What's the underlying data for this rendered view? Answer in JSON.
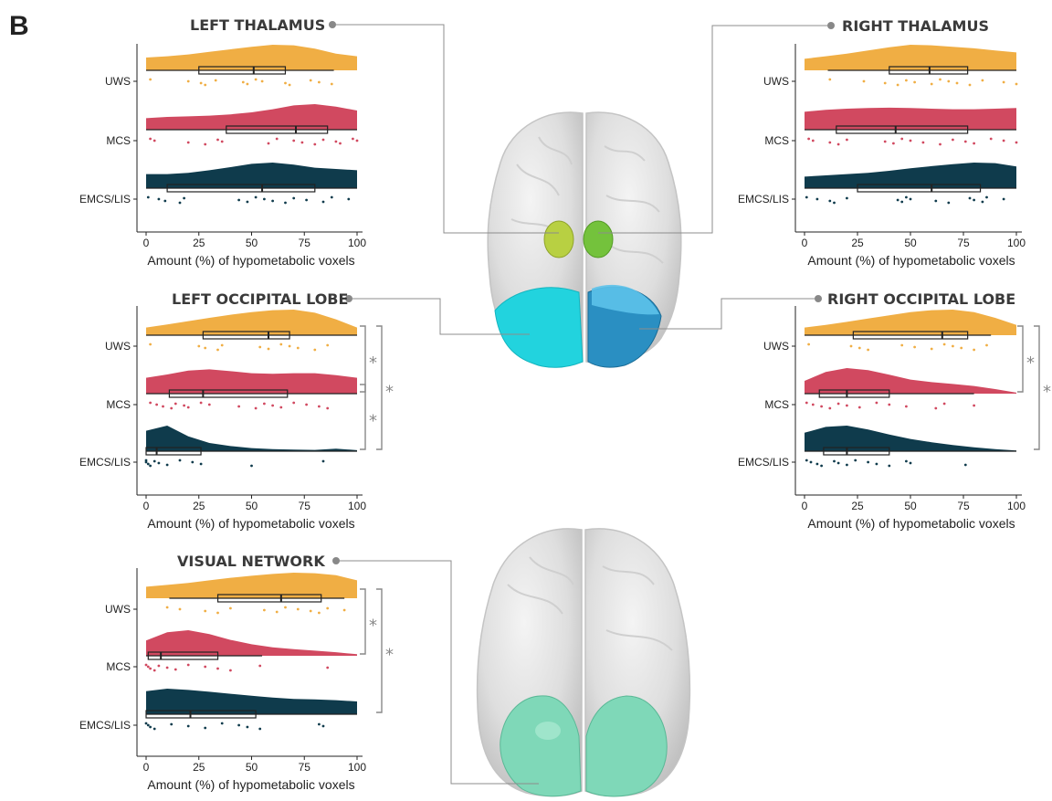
{
  "panel_label": "B",
  "colors": {
    "UWS": "#F0AE44",
    "MCS": "#D14960",
    "EMCS/LIS": "#0F3B4C"
  },
  "chart_data": [
    {
      "type": "raincloud",
      "title": "LEFT THALAMUS",
      "xlabel": "Amount (%) of hypometabolic voxels",
      "xlim": [
        0,
        100
      ],
      "xticks": [
        "0",
        "25",
        "50",
        "75",
        "100"
      ],
      "categories": [
        "UWS",
        "MCS",
        "EMCS/LIS"
      ],
      "series": [
        {
          "name": "UWS",
          "box": {
            "min": 0,
            "q1": 25,
            "median": 51,
            "q3": 66,
            "max": 89
          },
          "density": [
            0.5,
            0.55,
            0.62,
            0.72,
            0.82,
            0.92,
            1.0,
            0.98,
            0.85,
            0.65,
            0.55
          ],
          "points": [
            2,
            20,
            26,
            28,
            33,
            46,
            48,
            52,
            55,
            66,
            68,
            78,
            82,
            88
          ]
        },
        {
          "name": "MCS",
          "box": {
            "min": 0,
            "q1": 38,
            "median": 71,
            "q3": 86,
            "max": 100
          },
          "density": [
            0.45,
            0.5,
            0.52,
            0.55,
            0.6,
            0.68,
            0.8,
            0.95,
            1.0,
            0.9,
            0.75
          ],
          "points": [
            2,
            4,
            20,
            28,
            34,
            36,
            58,
            62,
            70,
            74,
            80,
            84,
            90,
            92,
            98,
            100
          ]
        },
        {
          "name": "EMCS/LIS",
          "box": {
            "min": 0,
            "q1": 10,
            "median": 55,
            "q3": 80,
            "max": 100
          },
          "density": [
            0.55,
            0.55,
            0.6,
            0.7,
            0.82,
            0.95,
            1.0,
            0.92,
            0.8,
            0.75,
            0.7
          ],
          "points": [
            1,
            6,
            9,
            16,
            18,
            44,
            48,
            52,
            56,
            60,
            66,
            70,
            76,
            84,
            88,
            96
          ]
        }
      ],
      "significance": []
    },
    {
      "type": "raincloud",
      "title": "RIGHT THALAMUS",
      "xlabel": "Amount (%) of hypometabolic voxels",
      "xlim": [
        0,
        100
      ],
      "xticks": [
        "0",
        "25",
        "50",
        "75",
        "100"
      ],
      "categories": [
        "UWS",
        "MCS",
        "EMCS/LIS"
      ],
      "series": [
        {
          "name": "UWS",
          "box": {
            "min": 11,
            "q1": 40,
            "median": 59,
            "q3": 77,
            "max": 100
          },
          "density": [
            0.45,
            0.55,
            0.65,
            0.78,
            0.9,
            1.0,
            0.98,
            0.92,
            0.86,
            0.78,
            0.7
          ],
          "points": [
            12,
            28,
            38,
            44,
            48,
            52,
            60,
            64,
            68,
            72,
            78,
            84,
            94,
            100
          ]
        },
        {
          "name": "MCS",
          "box": {
            "min": 0,
            "q1": 15,
            "median": 43,
            "q3": 77,
            "max": 100
          },
          "density": [
            0.7,
            0.78,
            0.82,
            0.85,
            0.86,
            0.85,
            0.82,
            0.8,
            0.8,
            0.82,
            0.85
          ],
          "points": [
            2,
            4,
            12,
            16,
            20,
            38,
            42,
            46,
            50,
            56,
            64,
            70,
            76,
            80,
            88,
            94,
            100
          ]
        },
        {
          "name": "EMCS/LIS",
          "box": {
            "min": 0,
            "q1": 25,
            "median": 60,
            "q3": 83,
            "max": 100
          },
          "density": [
            0.45,
            0.5,
            0.55,
            0.6,
            0.68,
            0.78,
            0.86,
            0.94,
            1.0,
            0.98,
            0.85
          ],
          "points": [
            1,
            6,
            12,
            14,
            20,
            44,
            46,
            48,
            50,
            62,
            68,
            78,
            80,
            84,
            86,
            94
          ]
        }
      ],
      "significance": []
    },
    {
      "type": "raincloud",
      "title": "LEFT OCCIPITAL LOBE",
      "xlabel": "Amount (%) of hypometabolic voxels",
      "xlim": [
        0,
        100
      ],
      "xticks": [
        "0",
        "25",
        "50",
        "75",
        "100"
      ],
      "categories": [
        "UWS",
        "MCS",
        "EMCS/LIS"
      ],
      "series": [
        {
          "name": "UWS",
          "box": {
            "min": 0,
            "q1": 27,
            "median": 58,
            "q3": 68,
            "max": 100
          },
          "density": [
            0.3,
            0.42,
            0.55,
            0.68,
            0.8,
            0.9,
            0.98,
            1.0,
            0.88,
            0.62,
            0.3
          ],
          "points": [
            2,
            25,
            28,
            34,
            36,
            54,
            58,
            64,
            68,
            72,
            80,
            86
          ]
        },
        {
          "name": "MCS",
          "box": {
            "min": 0,
            "q1": 11,
            "median": 27,
            "q3": 67,
            "max": 100
          },
          "density": [
            0.62,
            0.75,
            0.9,
            0.95,
            0.88,
            0.8,
            0.78,
            0.8,
            0.8,
            0.72,
            0.62
          ],
          "points": [
            2,
            5,
            8,
            12,
            14,
            18,
            20,
            26,
            30,
            44,
            52,
            56,
            60,
            64,
            70,
            76,
            82,
            86
          ]
        },
        {
          "name": "EMCS/LIS",
          "box": {
            "min": 0,
            "q1": 0,
            "median": 5,
            "q3": 26,
            "max": 100
          },
          "density": [
            0.8,
            1.0,
            0.58,
            0.32,
            0.2,
            0.12,
            0.08,
            0.06,
            0.05,
            0.1,
            0.04
          ],
          "points": [
            0,
            0,
            1,
            2,
            4,
            6,
            10,
            16,
            22,
            26,
            50,
            84
          ]
        }
      ],
      "significance": [
        {
          "pair": [
            "UWS",
            "MCS"
          ],
          "label": "*"
        },
        {
          "pair": [
            "UWS",
            "EMCS/LIS"
          ],
          "label": "*"
        },
        {
          "pair": [
            "MCS",
            "EMCS/LIS"
          ],
          "label": "*"
        }
      ]
    },
    {
      "type": "raincloud",
      "title": "RIGHT OCCIPITAL LOBE",
      "xlabel": "Amount (%) of hypometabolic voxels",
      "xlim": [
        0,
        100
      ],
      "xticks": [
        "0",
        "25",
        "50",
        "75",
        "100"
      ],
      "categories": [
        "UWS",
        "MCS",
        "EMCS/LIS"
      ],
      "series": [
        {
          "name": "UWS",
          "box": {
            "min": 0,
            "q1": 23,
            "median": 65,
            "q3": 77,
            "max": 88
          },
          "density": [
            0.3,
            0.4,
            0.52,
            0.65,
            0.78,
            0.9,
            0.98,
            1.0,
            0.9,
            0.68,
            0.4
          ],
          "points": [
            2,
            22,
            26,
            30,
            46,
            52,
            60,
            66,
            70,
            74,
            80,
            86
          ]
        },
        {
          "name": "MCS",
          "box": {
            "min": 0,
            "q1": 7,
            "median": 20,
            "q3": 40,
            "max": 80
          },
          "density": [
            0.5,
            0.85,
            1.0,
            0.92,
            0.74,
            0.55,
            0.45,
            0.38,
            0.3,
            0.18,
            0.04
          ],
          "points": [
            1,
            4,
            8,
            12,
            16,
            20,
            26,
            34,
            40,
            48,
            62,
            66,
            80
          ]
        },
        {
          "name": "EMCS/LIS",
          "box": {
            "min": 0,
            "q1": 9,
            "median": 20,
            "q3": 40,
            "max": 100
          },
          "density": [
            0.72,
            0.95,
            1.0,
            0.85,
            0.65,
            0.48,
            0.35,
            0.24,
            0.15,
            0.08,
            0.03
          ],
          "points": [
            1,
            3,
            6,
            8,
            14,
            16,
            20,
            24,
            30,
            34,
            40,
            48,
            50,
            76
          ]
        }
      ],
      "significance": [
        {
          "pair": [
            "UWS",
            "MCS"
          ],
          "label": "*"
        },
        {
          "pair": [
            "UWS",
            "EMCS/LIS"
          ],
          "label": "*"
        }
      ]
    },
    {
      "type": "raincloud",
      "title": "VISUAL NETWORK",
      "xlabel": "Amount (%) of hypometabolic voxels",
      "xlim": [
        0,
        100
      ],
      "xticks": [
        "0",
        "25",
        "50",
        "75",
        "100"
      ],
      "categories": [
        "UWS",
        "MCS",
        "EMCS/LIS"
      ],
      "series": [
        {
          "name": "UWS",
          "box": {
            "min": 11,
            "q1": 34,
            "median": 64,
            "q3": 83,
            "max": 94
          },
          "density": [
            0.45,
            0.52,
            0.6,
            0.7,
            0.8,
            0.88,
            0.95,
            1.0,
            0.98,
            0.9,
            0.7
          ],
          "points": [
            10,
            16,
            28,
            34,
            40,
            56,
            62,
            66,
            72,
            78,
            82,
            86,
            94
          ]
        },
        {
          "name": "MCS",
          "box": {
            "min": 0,
            "q1": 1,
            "median": 7,
            "q3": 34,
            "max": 55
          },
          "density": [
            0.6,
            0.92,
            1.0,
            0.85,
            0.62,
            0.45,
            0.33,
            0.26,
            0.2,
            0.14,
            0.06
          ],
          "points": [
            0,
            1,
            2,
            4,
            6,
            10,
            14,
            20,
            28,
            34,
            40,
            54,
            86
          ]
        },
        {
          "name": "EMCS/LIS",
          "box": {
            "min": 0,
            "q1": 0,
            "median": 21,
            "q3": 52,
            "max": 100
          },
          "density": [
            0.9,
            1.0,
            0.95,
            0.88,
            0.8,
            0.72,
            0.65,
            0.6,
            0.58,
            0.55,
            0.5
          ],
          "points": [
            0,
            1,
            2,
            4,
            12,
            20,
            28,
            36,
            44,
            48,
            54,
            82,
            84
          ]
        }
      ],
      "significance": [
        {
          "pair": [
            "UWS",
            "MCS"
          ],
          "label": "*"
        },
        {
          "pair": [
            "UWS",
            "EMCS/LIS"
          ],
          "label": "*"
        }
      ]
    }
  ]
}
